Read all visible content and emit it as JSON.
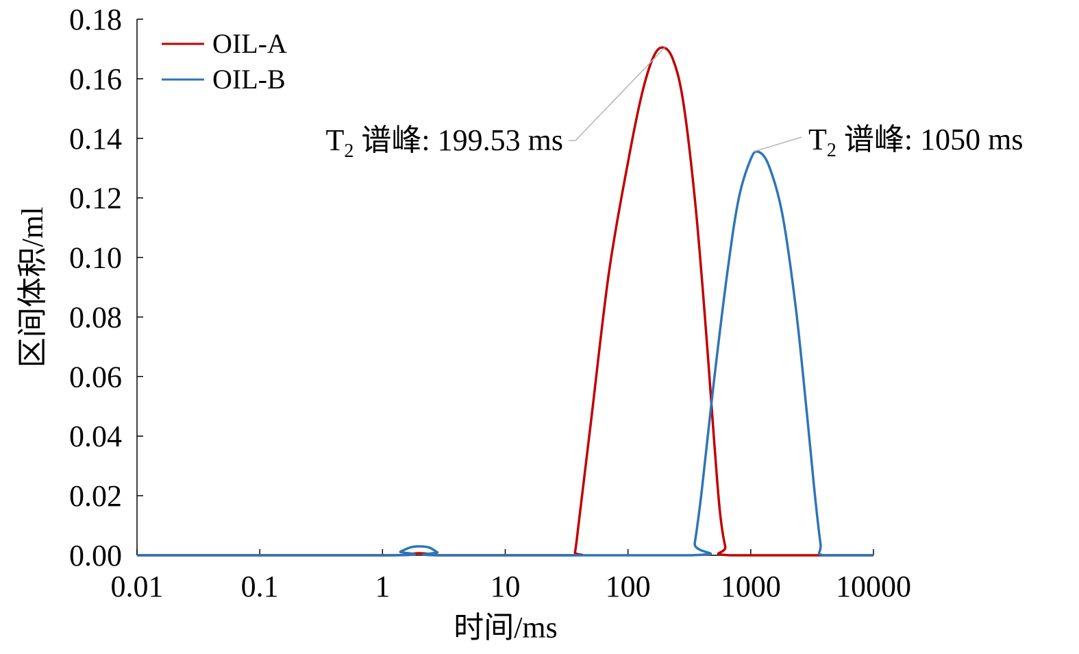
{
  "chart_data": {
    "type": "line",
    "title": "",
    "xlabel": "时间/ms",
    "ylabel": "区间体积/ml",
    "x_scale": "log",
    "xlim": [
      0.01,
      10000
    ],
    "ylim": [
      0,
      0.18
    ],
    "x_ticks": [
      "0.01",
      "0.1",
      "1",
      "10",
      "100",
      "1000",
      "10000"
    ],
    "y_ticks": [
      "0.00",
      "0.02",
      "0.04",
      "0.06",
      "0.08",
      "0.10",
      "0.12",
      "0.14",
      "0.16",
      "0.18"
    ],
    "grid": false,
    "legend_position": "top-left",
    "series": [
      {
        "name": "OIL-A",
        "color": "#c00000",
        "x": [
          0.01,
          1,
          1.6,
          2,
          2.5,
          3,
          35,
          37,
          40,
          50,
          70,
          100,
          130,
          160,
          190,
          230,
          280,
          350,
          420,
          500,
          560,
          620,
          680,
          10000
        ],
        "y": [
          0,
          0,
          0.0004,
          0.0007,
          0.0004,
          0,
          0,
          0.001,
          0.012,
          0.045,
          0.095,
          0.132,
          0.155,
          0.167,
          0.1705,
          0.167,
          0.153,
          0.12,
          0.082,
          0.04,
          0.015,
          0.003,
          0,
          0
        ]
      },
      {
        "name": "OIL-B",
        "color": "#2e75b6",
        "x": [
          0.01,
          1.25,
          1.4,
          1.7,
          2.0,
          2.4,
          2.8,
          3.1,
          330,
          350,
          400,
          500,
          650,
          800,
          1000,
          1150,
          1400,
          1800,
          2300,
          2800,
          3300,
          3700,
          3900,
          10000
        ],
        "y": [
          0,
          0,
          0.0012,
          0.0027,
          0.003,
          0.0026,
          0.001,
          0,
          0,
          0.004,
          0.022,
          0.058,
          0.096,
          0.12,
          0.133,
          0.1355,
          0.131,
          0.115,
          0.085,
          0.052,
          0.022,
          0.004,
          0,
          0
        ]
      }
    ],
    "annotations": [
      {
        "series": "OIL-A",
        "label_base": "T",
        "label_sub": "2",
        "label_rest": " 谱峰: 199.53 ms",
        "x": 199.53,
        "y": 0.1705
      },
      {
        "series": "OIL-B",
        "label_base": "T",
        "label_sub": "2",
        "label_rest": " 谱峰: 1050 ms",
        "x": 1050,
        "y": 0.1355
      }
    ]
  }
}
